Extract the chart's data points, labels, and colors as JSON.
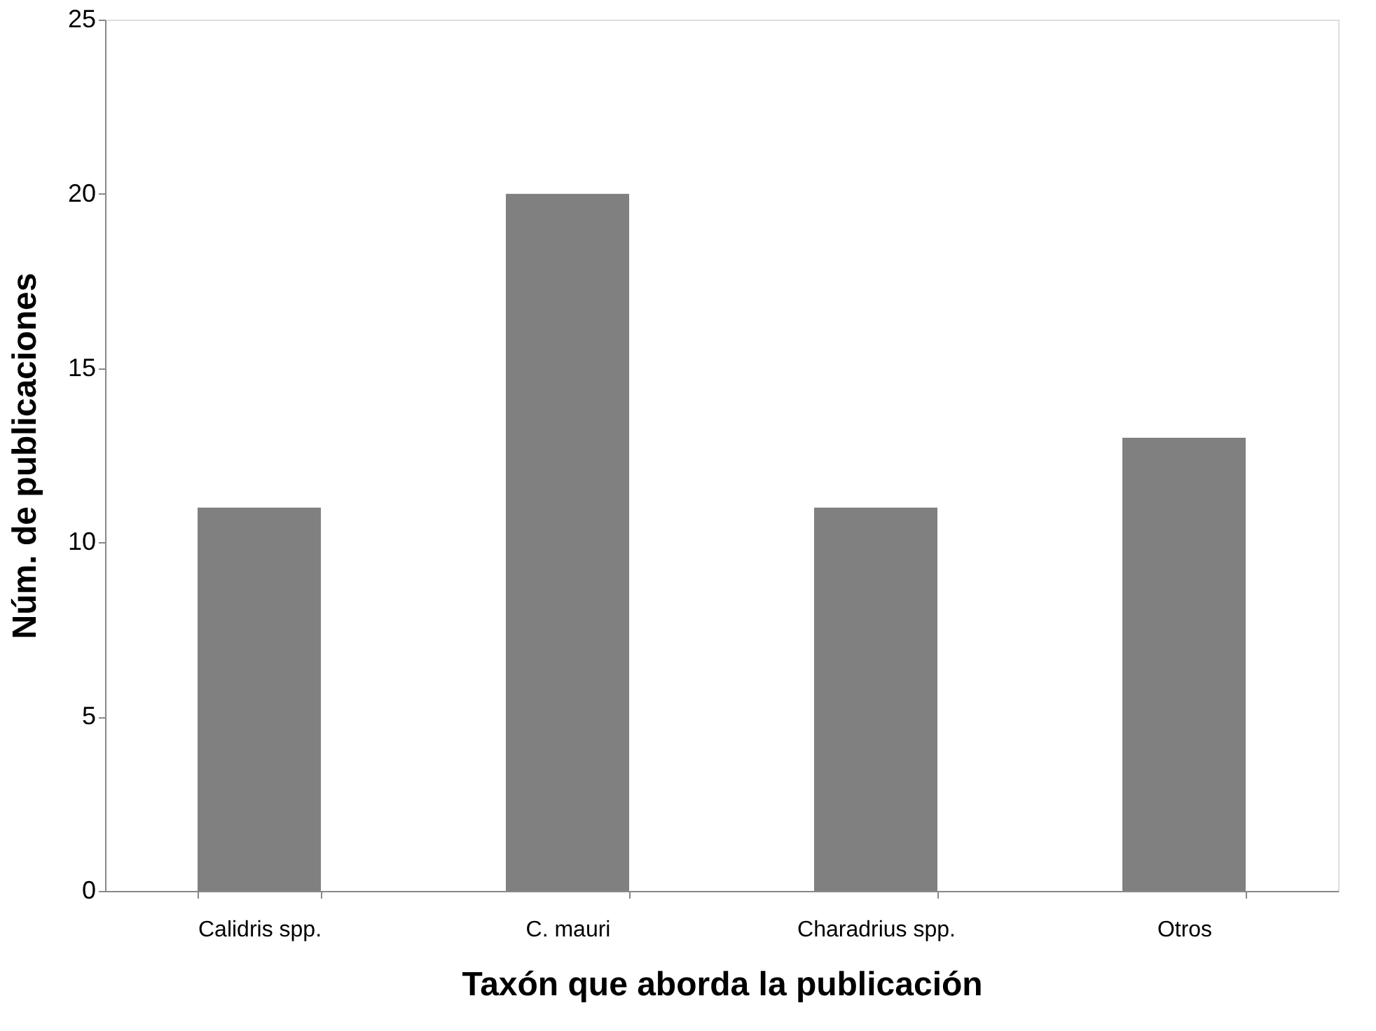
{
  "chart_data": {
    "type": "bar",
    "xlabel": "Taxón que aborda la publicación",
    "ylabel": "Núm. de publicaciones",
    "categories": [
      "Calidris spp.",
      "C. mauri",
      "Charadrius spp.",
      "Otros"
    ],
    "values": [
      11,
      20,
      11,
      13
    ],
    "color": "#808080",
    "ylim": [
      0,
      25
    ],
    "yticks": [
      0,
      5,
      10,
      15,
      20,
      25
    ],
    "grid": false
  }
}
